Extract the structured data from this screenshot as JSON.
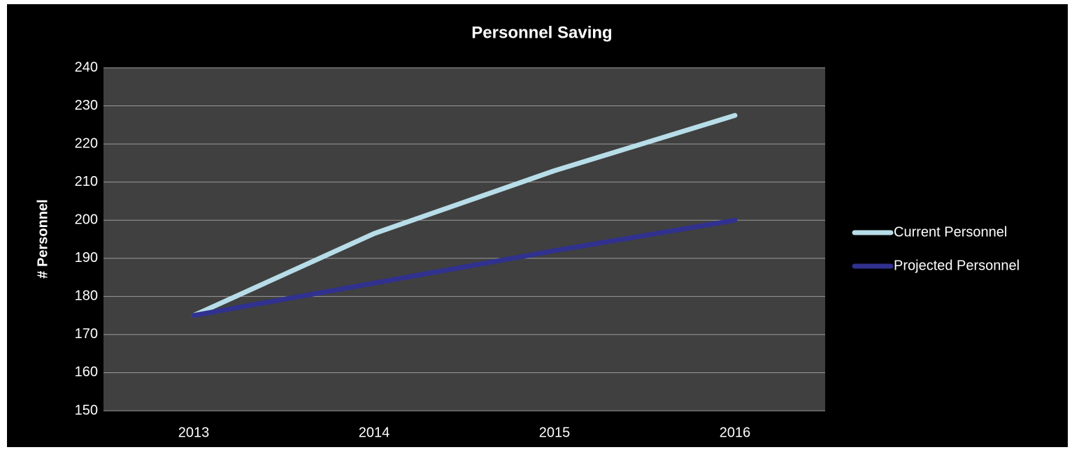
{
  "chart_data": {
    "type": "line",
    "title": "Personnel Saving",
    "y_label": "# Personnel",
    "categories": [
      "2013",
      "2014",
      "2015",
      "2016"
    ],
    "series": [
      {
        "name": "Current Personnel",
        "color": "#b7dde8",
        "values": [
          175,
          196.5,
          213,
          227.5
        ]
      },
      {
        "name": "Projected Personnel",
        "color": "#31318f",
        "values": [
          175,
          183.5,
          192,
          200
        ]
      }
    ],
    "ylim": [
      150,
      240
    ],
    "yticks": [
      150,
      160,
      170,
      180,
      190,
      200,
      210,
      220,
      230,
      240
    ],
    "grid": true,
    "legend": "right"
  }
}
